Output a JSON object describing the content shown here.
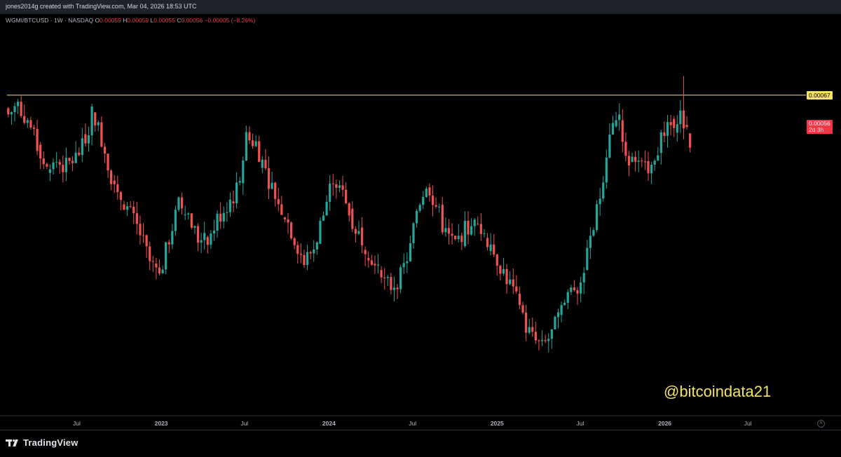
{
  "header": {
    "caption": "jones2014g created with TradingView.com, Mar 04, 2026 18:53 UTC"
  },
  "legend": {
    "symbol": "WGMI/BTCUSD · 1W · NASDAQ",
    "open_key": "O",
    "open": "0.00059",
    "high_key": "H",
    "high": "0.00059",
    "low_key": "L",
    "low": "0.00055",
    "close_key": "C",
    "close": "0.00056",
    "change": "−0.00005 (−8.26%)"
  },
  "resistance": {
    "label": "0.00067",
    "color": "#f5e463"
  },
  "last_price": {
    "label": "0.00056",
    "countdown": "2d 3h",
    "color": "#f23645"
  },
  "watermark": "@bitcoindata21",
  "footer": {
    "brand": "TradingView"
  },
  "axis": {
    "auto_label": "A",
    "time_ticks": [
      {
        "label": "Jul",
        "date": "2022-07-01"
      },
      {
        "label": "2023",
        "date": "2023-01-01"
      },
      {
        "label": "Jul",
        "date": "2023-07-01"
      },
      {
        "label": "2024",
        "date": "2024-01-01"
      },
      {
        "label": "Jul",
        "date": "2024-07-01"
      },
      {
        "label": "2025",
        "date": "2025-01-01"
      },
      {
        "label": "Jul",
        "date": "2025-07-01"
      },
      {
        "label": "2026",
        "date": "2026-01-01"
      },
      {
        "label": "Jul",
        "date": "2026-07-01"
      }
    ]
  },
  "colors": {
    "up": "#26a69a",
    "down": "#ef5350",
    "background": "#000000"
  },
  "chart_data": {
    "type": "candlestick",
    "interval": "1W",
    "x_range": [
      "2022-01-15",
      "2026-10-20"
    ],
    "y_range": [
      0.0,
      0.00084
    ],
    "grid": false,
    "resistance_level": 0.00067,
    "weekly_close_path": [
      [
        "2022-02-02",
        0.00063
      ],
      [
        "2022-02-23",
        0.00065
      ],
      [
        "2022-03-16",
        0.00062
      ],
      [
        "2022-04-06",
        0.00056
      ],
      [
        "2022-04-27",
        0.00051
      ],
      [
        "2022-05-18",
        0.00053
      ],
      [
        "2022-06-08",
        0.00052
      ],
      [
        "2022-06-29",
        0.00054
      ],
      [
        "2022-07-20",
        0.00057
      ],
      [
        "2022-08-03",
        0.00064
      ],
      [
        "2022-08-24",
        0.00058
      ],
      [
        "2022-09-14",
        0.0005
      ],
      [
        "2022-10-05",
        0.00046
      ],
      [
        "2022-10-26",
        0.00042
      ],
      [
        "2022-11-16",
        0.00038
      ],
      [
        "2022-12-07",
        0.00032
      ],
      [
        "2022-12-28",
        0.00029
      ],
      [
        "2023-01-18",
        0.00037
      ],
      [
        "2023-02-08",
        0.00044
      ],
      [
        "2023-03-01",
        0.00042
      ],
      [
        "2023-03-22",
        0.00037
      ],
      [
        "2023-04-12",
        0.00036
      ],
      [
        "2023-05-03",
        0.00041
      ],
      [
        "2023-05-24",
        0.00044
      ],
      [
        "2023-06-14",
        0.00047
      ],
      [
        "2023-07-05",
        0.00058
      ],
      [
        "2023-07-26",
        0.00057
      ],
      [
        "2023-08-16",
        0.00051
      ],
      [
        "2023-09-06",
        0.00046
      ],
      [
        "2023-09-27",
        0.00042
      ],
      [
        "2023-10-18",
        0.00037
      ],
      [
        "2023-11-08",
        0.00032
      ],
      [
        "2023-11-29",
        0.00035
      ],
      [
        "2023-12-20",
        0.00042
      ],
      [
        "2024-01-10",
        0.0005
      ],
      [
        "2024-01-31",
        0.00046
      ],
      [
        "2024-02-21",
        0.0004
      ],
      [
        "2024-03-13",
        0.00037
      ],
      [
        "2024-04-03",
        0.00033
      ],
      [
        "2024-04-24",
        0.00028
      ],
      [
        "2024-05-15",
        0.00027
      ],
      [
        "2024-06-05",
        0.00029
      ],
      [
        "2024-06-26",
        0.00035
      ],
      [
        "2024-07-10",
        0.00043
      ],
      [
        "2024-07-31",
        0.00049
      ],
      [
        "2024-08-21",
        0.00044
      ],
      [
        "2024-09-11",
        0.00038
      ],
      [
        "2024-10-02",
        0.00036
      ],
      [
        "2024-10-23",
        0.00039
      ],
      [
        "2024-11-13",
        0.0004
      ],
      [
        "2024-12-04",
        0.00038
      ],
      [
        "2024-12-25",
        0.00034
      ],
      [
        "2025-01-15",
        0.0003
      ],
      [
        "2025-02-05",
        0.00026
      ],
      [
        "2025-02-26",
        0.0002
      ],
      [
        "2025-03-19",
        0.00016
      ],
      [
        "2025-04-09",
        0.00014
      ],
      [
        "2025-04-30",
        0.00017
      ],
      [
        "2025-05-21",
        0.00022
      ],
      [
        "2025-06-11",
        0.00026
      ],
      [
        "2025-07-02",
        0.00028
      ],
      [
        "2025-07-23",
        0.00036
      ],
      [
        "2025-08-13",
        0.00046
      ],
      [
        "2025-09-03",
        0.0006
      ],
      [
        "2025-09-24",
        0.00062
      ],
      [
        "2025-10-08",
        0.00053
      ],
      [
        "2025-10-29",
        0.00054
      ],
      [
        "2025-11-19",
        0.00051
      ],
      [
        "2025-12-10",
        0.00055
      ],
      [
        "2025-12-31",
        0.00059
      ],
      [
        "2026-01-21",
        0.00062
      ],
      [
        "2026-02-04",
        0.00063
      ],
      [
        "2026-02-11",
        0.00061
      ],
      [
        "2026-02-25",
        0.00056
      ]
    ]
  }
}
